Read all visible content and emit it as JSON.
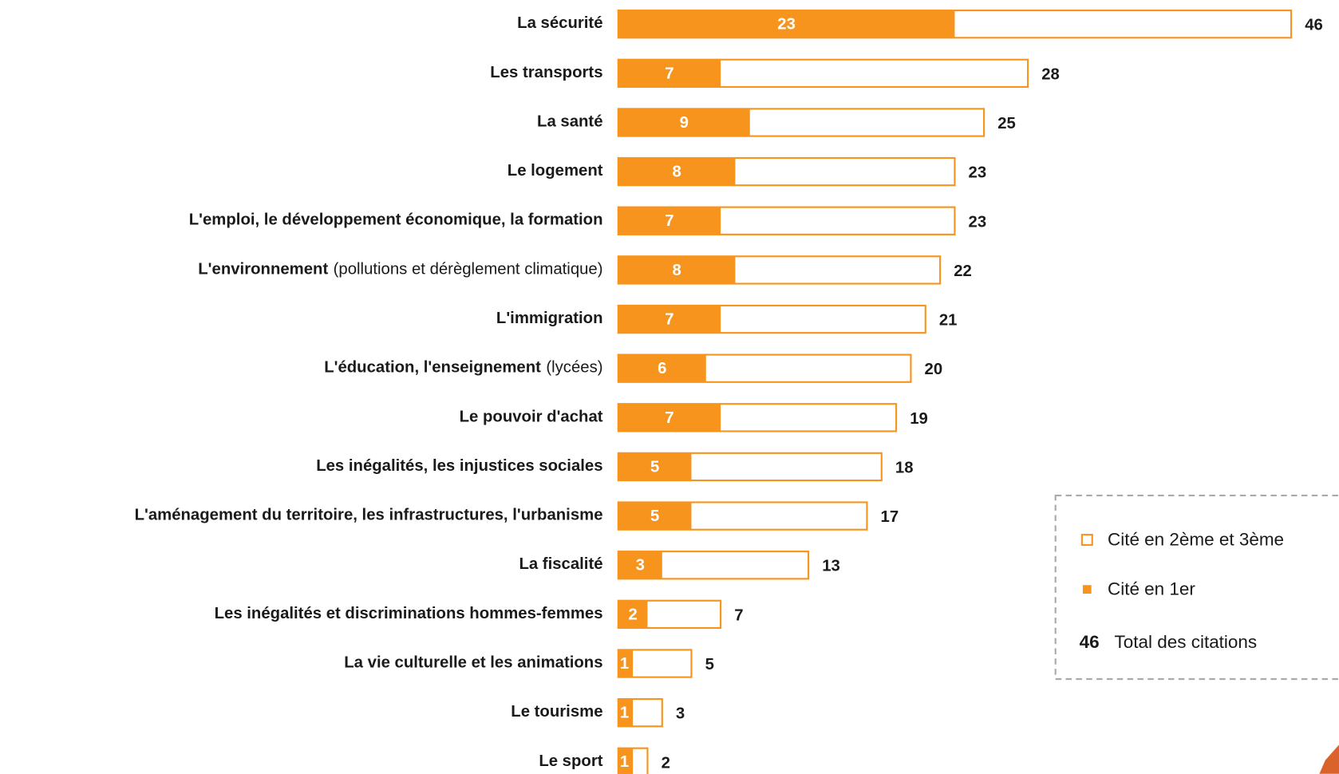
{
  "chart_data": {
    "type": "bar",
    "categories": [
      "La sécurité",
      "Les transports",
      "La santé",
      "Le logement",
      "L'emploi, le développement économique, la formation",
      "L'environnement",
      "L'immigration",
      "L'éducation, l'enseignement",
      "Le pouvoir d'achat",
      "Les inégalités, les injustices sociales",
      "L'aménagement du territoire, les infrastructures, l'urbanisme",
      "La fiscalité",
      "Les inégalités et discriminations hommes-femmes",
      "La vie culturelle et les animations",
      "Le tourisme",
      "Le sport"
    ],
    "category_notes": [
      null,
      null,
      null,
      null,
      null,
      "(pollutions et dérèglement climatique)",
      null,
      "(lycées)",
      null,
      null,
      null,
      null,
      null,
      null,
      null,
      null
    ],
    "series": [
      {
        "name": "Cité en 1er",
        "color": "#f7941d",
        "values": [
          23,
          7,
          9,
          8,
          7,
          8,
          7,
          6,
          7,
          5,
          5,
          3,
          2,
          1,
          1,
          1
        ]
      },
      {
        "name": "Total des citations",
        "color": "#f7941d",
        "values": [
          46,
          28,
          25,
          23,
          23,
          22,
          21,
          20,
          19,
          18,
          17,
          13,
          7,
          5,
          3,
          2
        ]
      }
    ],
    "legend": {
      "outline": "Cité en 2ème et 3ème",
      "filled": "Cité en 1er",
      "total_value": 46,
      "total": "Total des citations"
    },
    "xlim": [
      0,
      46
    ]
  }
}
